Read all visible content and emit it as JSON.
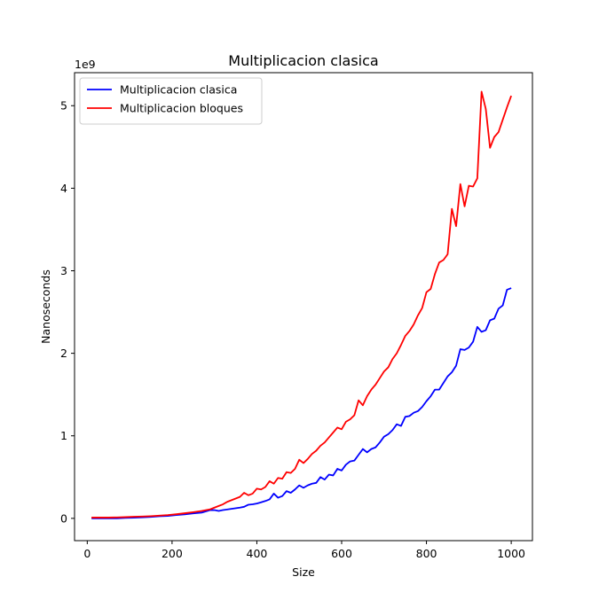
{
  "chart_data": {
    "type": "line",
    "title": "Multiplicacion clasica",
    "xlabel": "Size",
    "ylabel": "Nanoseconds",
    "y_offset_label": "1e9",
    "xlim": [
      -30,
      1050
    ],
    "ylim": [
      -0.27,
      5.4
    ],
    "x_ticks": [
      0,
      200,
      400,
      600,
      800,
      1000
    ],
    "y_ticks": [
      0,
      1,
      2,
      3,
      4,
      5
    ],
    "grid": false,
    "legend_position": "top-left",
    "series": [
      {
        "name": "Multiplicacion clasica",
        "color": "#0000ff",
        "x": [
          10,
          30,
          50,
          70,
          90,
          110,
          130,
          150,
          170,
          190,
          210,
          230,
          250,
          270,
          290,
          300,
          310,
          320,
          340,
          360,
          370,
          380,
          390,
          400,
          410,
          420,
          430,
          440,
          450,
          460,
          470,
          480,
          490,
          500,
          510,
          520,
          530,
          540,
          550,
          560,
          570,
          580,
          590,
          600,
          610,
          620,
          630,
          640,
          650,
          660,
          670,
          680,
          690,
          700,
          710,
          720,
          730,
          740,
          750,
          760,
          770,
          780,
          790,
          800,
          810,
          820,
          830,
          840,
          850,
          860,
          870,
          880,
          890,
          900,
          910,
          920,
          930,
          940,
          950,
          960,
          970,
          980,
          990,
          1000
        ],
        "values": [
          0,
          0,
          0,
          0,
          0.005,
          0.008,
          0.012,
          0.018,
          0.025,
          0.03,
          0.04,
          0.048,
          0.06,
          0.07,
          0.1,
          0.1,
          0.09,
          0.1,
          0.115,
          0.13,
          0.14,
          0.165,
          0.17,
          0.18,
          0.195,
          0.21,
          0.23,
          0.3,
          0.25,
          0.27,
          0.33,
          0.31,
          0.35,
          0.4,
          0.37,
          0.4,
          0.42,
          0.43,
          0.5,
          0.47,
          0.53,
          0.52,
          0.6,
          0.58,
          0.65,
          0.69,
          0.7,
          0.77,
          0.84,
          0.8,
          0.84,
          0.86,
          0.92,
          0.99,
          1.02,
          1.07,
          1.14,
          1.12,
          1.23,
          1.24,
          1.28,
          1.3,
          1.35,
          1.42,
          1.48,
          1.56,
          1.56,
          1.64,
          1.72,
          1.77,
          1.85,
          2.05,
          2.04,
          2.07,
          2.14,
          2.32,
          2.26,
          2.28,
          2.4,
          2.42,
          2.54,
          2.58,
          2.77,
          2.79
        ]
      },
      {
        "name": "Multiplicacion bloques",
        "color": "#ff0000",
        "x": [
          10,
          30,
          50,
          70,
          90,
          110,
          130,
          150,
          170,
          190,
          210,
          230,
          250,
          270,
          290,
          300,
          310,
          320,
          330,
          340,
          350,
          360,
          370,
          380,
          390,
          400,
          410,
          420,
          430,
          440,
          450,
          460,
          470,
          480,
          490,
          500,
          510,
          520,
          530,
          540,
          550,
          560,
          570,
          580,
          590,
          600,
          610,
          620,
          630,
          640,
          650,
          660,
          670,
          680,
          690,
          700,
          710,
          720,
          730,
          740,
          750,
          760,
          770,
          780,
          790,
          800,
          810,
          820,
          830,
          840,
          850,
          860,
          870,
          880,
          890,
          900,
          910,
          920,
          930,
          940,
          950,
          960,
          970,
          980,
          990,
          1000
        ],
        "values": [
          0.01,
          0.01,
          0.01,
          0.012,
          0.015,
          0.02,
          0.023,
          0.027,
          0.033,
          0.04,
          0.05,
          0.062,
          0.075,
          0.09,
          0.11,
          0.13,
          0.15,
          0.17,
          0.2,
          0.22,
          0.24,
          0.26,
          0.31,
          0.28,
          0.3,
          0.36,
          0.35,
          0.38,
          0.45,
          0.42,
          0.49,
          0.48,
          0.56,
          0.55,
          0.6,
          0.71,
          0.67,
          0.72,
          0.78,
          0.82,
          0.88,
          0.92,
          0.98,
          1.04,
          1.1,
          1.08,
          1.17,
          1.2,
          1.25,
          1.43,
          1.37,
          1.48,
          1.56,
          1.62,
          1.7,
          1.78,
          1.83,
          1.93,
          2.0,
          2.1,
          2.21,
          2.27,
          2.35,
          2.46,
          2.55,
          2.74,
          2.78,
          2.96,
          3.1,
          3.13,
          3.2,
          3.75,
          3.54,
          4.05,
          3.78,
          4.03,
          4.02,
          4.12,
          5.17,
          4.96,
          4.49,
          4.62,
          4.68,
          4.83,
          4.98,
          5.12
        ]
      }
    ]
  }
}
